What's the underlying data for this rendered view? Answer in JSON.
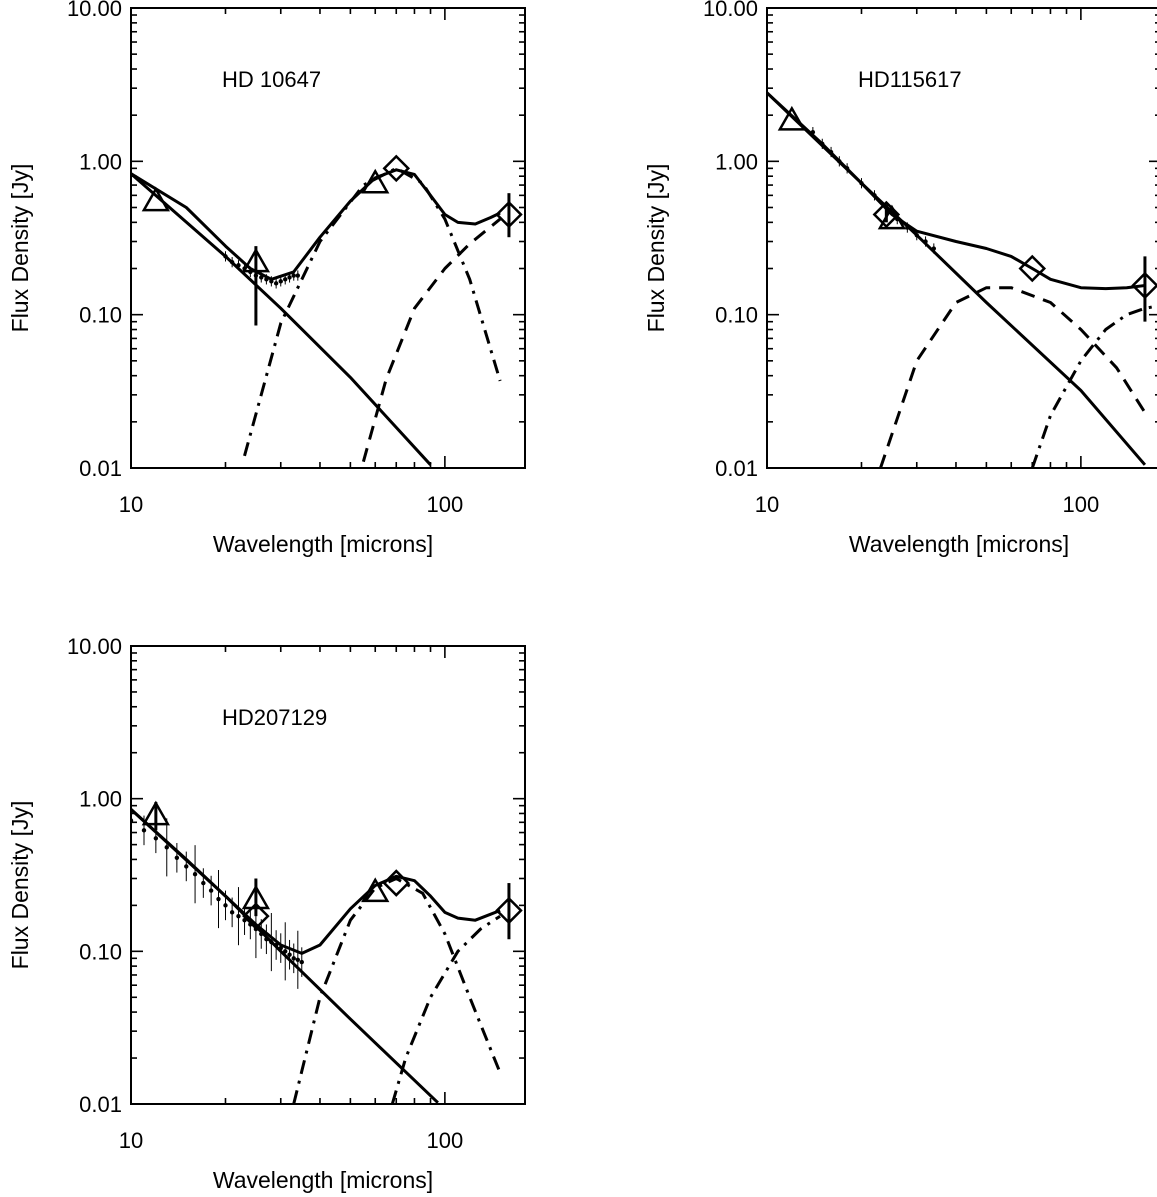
{
  "chart_data": [
    {
      "type": "line",
      "title": "HD 10647",
      "xlabel": "Wavelength [microns]",
      "ylabel": "Flux Density [Jy]",
      "xscale": "log",
      "yscale": "log",
      "xlim": [
        10,
        180
      ],
      "ylim": [
        0.01,
        10
      ],
      "xticks": [
        {
          "value": 10,
          "label": "10"
        },
        {
          "value": 100,
          "label": "100"
        }
      ],
      "yticks": [
        {
          "value": 0.01,
          "label": "0.01"
        },
        {
          "value": 0.1,
          "label": "0.10"
        },
        {
          "value": 1,
          "label": "1.00"
        },
        {
          "value": 10,
          "label": "10.00"
        }
      ],
      "series": [
        {
          "style": "solid",
          "x": [
            10,
            20,
            30,
            50,
            90
          ],
          "y": [
            0.83,
            0.24,
            0.11,
            0.039,
            0.0105
          ]
        },
        {
          "style": "dashdot",
          "x": [
            23,
            30,
            40,
            55,
            70,
            85,
            100,
            120,
            150
          ],
          "y": [
            0.012,
            0.088,
            0.3,
            0.7,
            0.9,
            0.72,
            0.42,
            0.17,
            0.037
          ]
        },
        {
          "style": "dashed",
          "x": [
            55,
            65,
            80,
            100,
            120,
            150
          ],
          "y": [
            0.011,
            0.038,
            0.11,
            0.2,
            0.29,
            0.42
          ]
        },
        {
          "style": "solid",
          "x": [
            10,
            15,
            20,
            24,
            28,
            33,
            40,
            50,
            60,
            70,
            80,
            90,
            100,
            110,
            125,
            140,
            150
          ],
          "y": [
            0.83,
            0.5,
            0.28,
            0.2,
            0.17,
            0.19,
            0.32,
            0.55,
            0.78,
            0.88,
            0.82,
            0.6,
            0.45,
            0.4,
            0.39,
            0.43,
            0.46
          ]
        }
      ],
      "spectrum": {
        "x": [
          20,
          21,
          22,
          23,
          24,
          25,
          26,
          27,
          28,
          29,
          30,
          31,
          32,
          33,
          34
        ],
        "y": [
          0.24,
          0.22,
          0.21,
          0.2,
          0.19,
          0.18,
          0.175,
          0.17,
          0.165,
          0.16,
          0.165,
          0.17,
          0.175,
          0.18,
          0.18
        ]
      },
      "points": [
        {
          "marker": "triangle",
          "x": 12,
          "y": 0.55,
          "err": [
            0.55,
            0.55
          ]
        },
        {
          "marker": "triangle",
          "x": 25,
          "y": 0.22,
          "err": [
            0.085,
            0.28
          ]
        },
        {
          "marker": "triangle",
          "x": 60,
          "y": 0.72,
          "err": [
            0.72,
            0.72
          ]
        },
        {
          "marker": "diamond",
          "x": 70,
          "y": 0.9,
          "err": [
            0.9,
            0.9
          ]
        },
        {
          "marker": "diamond",
          "x": 160,
          "y": 0.45,
          "err": [
            0.32,
            0.62
          ]
        }
      ]
    },
    {
      "type": "line",
      "title": "HD115617",
      "xlabel": "Wavelength [microns]",
      "ylabel": "Flux Density [Jy]",
      "xscale": "log",
      "yscale": "log",
      "xlim": [
        10,
        180
      ],
      "ylim": [
        0.01,
        10
      ],
      "xticks": [
        {
          "value": 10,
          "label": "10"
        },
        {
          "value": 100,
          "label": "100"
        }
      ],
      "yticks": [
        {
          "value": 0.01,
          "label": "0.01"
        },
        {
          "value": 0.1,
          "label": "0.10"
        },
        {
          "value": 1,
          "label": "1.00"
        },
        {
          "value": 10,
          "label": "10.00"
        }
      ],
      "series": [
        {
          "style": "solid",
          "x": [
            10,
            20,
            30,
            50,
            100,
            160
          ],
          "y": [
            2.8,
            0.72,
            0.33,
            0.12,
            0.032,
            0.0105
          ]
        },
        {
          "style": "dashed",
          "x": [
            23,
            30,
            40,
            50,
            60,
            80,
            100,
            130,
            160
          ],
          "y": [
            0.01,
            0.05,
            0.12,
            0.15,
            0.15,
            0.12,
            0.08,
            0.045,
            0.023
          ]
        },
        {
          "style": "dashdot",
          "x": [
            70,
            80,
            100,
            120,
            140,
            160,
            180
          ],
          "y": [
            0.01,
            0.022,
            0.05,
            0.08,
            0.1,
            0.11,
            0.115
          ]
        },
        {
          "style": "solid",
          "x": [
            10,
            15,
            20,
            25,
            30,
            40,
            50,
            60,
            70,
            80,
            100,
            120,
            140,
            160
          ],
          "y": [
            2.8,
            1.3,
            0.72,
            0.45,
            0.35,
            0.3,
            0.27,
            0.24,
            0.2,
            0.17,
            0.15,
            0.148,
            0.15,
            0.155
          ]
        }
      ],
      "spectrum": {
        "x": [
          14,
          15,
          16,
          17,
          18,
          20,
          22,
          24,
          26,
          28,
          30,
          32,
          34
        ],
        "y": [
          1.55,
          1.3,
          1.15,
          1.0,
          0.9,
          0.72,
          0.6,
          0.5,
          0.42,
          0.37,
          0.33,
          0.3,
          0.27
        ]
      },
      "points": [
        {
          "marker": "triangle",
          "x": 12,
          "y": 1.85,
          "err": [
            1.85,
            1.85
          ]
        },
        {
          "marker": "diamond",
          "x": 24,
          "y": 0.45,
          "err": [
            0.4,
            0.52
          ]
        },
        {
          "marker": "triangle",
          "x": 25,
          "y": 0.42,
          "err": [
            0.42,
            0.42
          ]
        },
        {
          "marker": "diamond",
          "x": 70,
          "y": 0.2,
          "err": [
            0.2,
            0.2
          ]
        },
        {
          "marker": "diamond",
          "x": 160,
          "y": 0.155,
          "err": [
            0.09,
            0.24
          ]
        }
      ]
    },
    {
      "type": "line",
      "title": "HD207129",
      "xlabel": "Wavelength [microns]",
      "ylabel": "Flux Density [Jy]",
      "xscale": "log",
      "yscale": "log",
      "xlim": [
        10,
        180
      ],
      "ylim": [
        0.01,
        10
      ],
      "xticks": [
        {
          "value": 10,
          "label": "10"
        },
        {
          "value": 100,
          "label": "100"
        }
      ],
      "yticks": [
        {
          "value": 0.01,
          "label": "0.01"
        },
        {
          "value": 0.1,
          "label": "0.10"
        },
        {
          "value": 1,
          "label": "1.00"
        },
        {
          "value": 10,
          "label": "10.00"
        }
      ],
      "series": [
        {
          "style": "solid",
          "x": [
            10,
            20,
            30,
            50,
            95
          ],
          "y": [
            0.85,
            0.23,
            0.1,
            0.036,
            0.0102
          ]
        },
        {
          "style": "dashdot",
          "x": [
            33,
            40,
            50,
            60,
            70,
            85,
            100,
            120,
            150
          ],
          "y": [
            0.01,
            0.05,
            0.16,
            0.26,
            0.3,
            0.24,
            0.13,
            0.05,
            0.016
          ]
        },
        {
          "style": "dashdot",
          "x": [
            68,
            75,
            90,
            110,
            130,
            150
          ],
          "y": [
            0.01,
            0.02,
            0.05,
            0.1,
            0.14,
            0.17
          ]
        },
        {
          "style": "solid",
          "x": [
            10,
            15,
            20,
            25,
            30,
            35,
            40,
            50,
            60,
            70,
            80,
            90,
            100,
            110,
            125,
            140,
            150
          ],
          "y": [
            0.85,
            0.4,
            0.23,
            0.15,
            0.11,
            0.097,
            0.11,
            0.19,
            0.27,
            0.31,
            0.29,
            0.23,
            0.18,
            0.165,
            0.16,
            0.175,
            0.185
          ]
        }
      ],
      "spectrum": {
        "x": [
          10,
          11,
          12,
          13,
          14,
          15,
          16,
          17,
          18,
          19,
          20,
          21,
          22,
          23,
          24,
          25,
          26,
          27,
          28,
          29,
          30,
          31,
          32,
          33,
          34,
          35
        ],
        "y": [
          0.72,
          0.62,
          0.55,
          0.48,
          0.41,
          0.36,
          0.32,
          0.28,
          0.25,
          0.22,
          0.2,
          0.18,
          0.17,
          0.16,
          0.15,
          0.14,
          0.13,
          0.12,
          0.115,
          0.11,
          0.105,
          0.1,
          0.095,
          0.09,
          0.088,
          0.085
        ]
      },
      "points": [
        {
          "marker": "triangle",
          "x": 12,
          "y": 0.78,
          "err": [
            0.62,
            0.95
          ]
        },
        {
          "marker": "triangle",
          "x": 25,
          "y": 0.22,
          "err": [
            0.17,
            0.3
          ]
        },
        {
          "marker": "diamond",
          "x": 25,
          "y": 0.17,
          "err": [
            0.17,
            0.17
          ]
        },
        {
          "marker": "triangle",
          "x": 60,
          "y": 0.245,
          "err": [
            0.245,
            0.245
          ]
        },
        {
          "marker": "diamond",
          "x": 70,
          "y": 0.28,
          "err": [
            0.28,
            0.28
          ]
        },
        {
          "marker": "diamond",
          "x": 160,
          "y": 0.185,
          "err": [
            0.12,
            0.28
          ]
        }
      ]
    }
  ]
}
